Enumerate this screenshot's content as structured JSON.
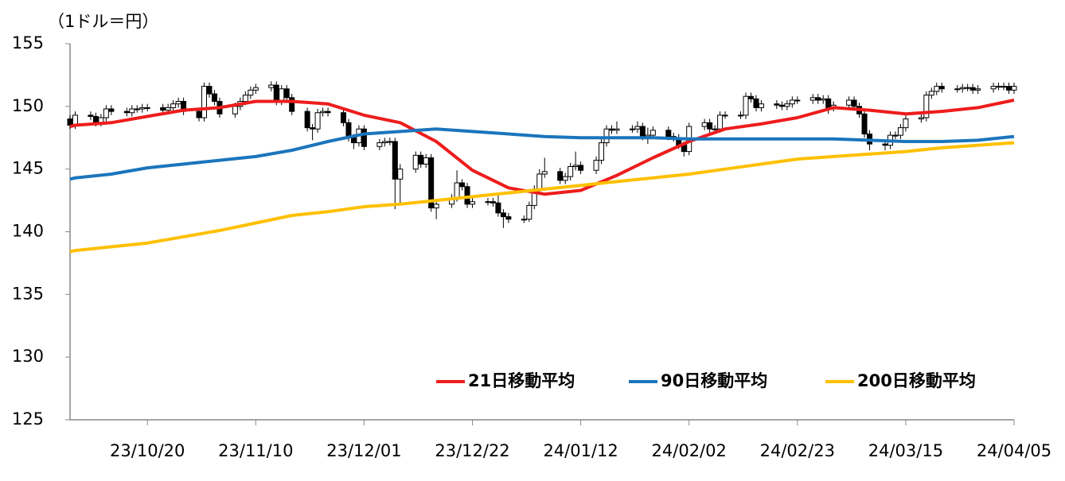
{
  "chart_data": {
    "type": "candlestick",
    "y_label": "（1ドル＝円）",
    "x": [
      "23/10/05",
      "23/10/06",
      "23/10/09",
      "23/10/10",
      "23/10/11",
      "23/10/12",
      "23/10/13",
      "23/10/16",
      "23/10/17",
      "23/10/18",
      "23/10/19",
      "23/10/20",
      "23/10/23",
      "23/10/24",
      "23/10/25",
      "23/10/26",
      "23/10/27",
      "23/10/30",
      "23/10/31",
      "23/11/01",
      "23/11/02",
      "23/11/03",
      "23/11/06",
      "23/11/07",
      "23/11/08",
      "23/11/09",
      "23/11/10",
      "23/11/13",
      "23/11/14",
      "23/11/15",
      "23/11/16",
      "23/11/17",
      "23/11/20",
      "23/11/21",
      "23/11/22",
      "23/11/23",
      "23/11/24",
      "23/11/27",
      "23/11/28",
      "23/11/29",
      "23/11/30",
      "23/12/01",
      "23/12/04",
      "23/12/05",
      "23/12/06",
      "23/12/07",
      "23/12/08",
      "23/12/11",
      "23/12/12",
      "23/12/13",
      "23/12/14",
      "23/12/15",
      "23/12/18",
      "23/12/19",
      "23/12/20",
      "23/12/21",
      "23/12/22",
      "23/12/25",
      "23/12/26",
      "23/12/27",
      "23/12/28",
      "23/12/29",
      "24/01/01",
      "24/01/02",
      "24/01/03",
      "24/01/04",
      "24/01/05",
      "24/01/08",
      "24/01/09",
      "24/01/10",
      "24/01/11",
      "24/01/12",
      "24/01/15",
      "24/01/16",
      "24/01/17",
      "24/01/18",
      "24/01/19",
      "24/01/22",
      "24/01/23",
      "24/01/24",
      "24/01/25",
      "24/01/26",
      "24/01/29",
      "24/01/30",
      "24/01/31",
      "24/02/01",
      "24/02/02",
      "24/02/05",
      "24/02/06",
      "24/02/07",
      "24/02/08",
      "24/02/09",
      "24/02/12",
      "24/02/13",
      "24/02/14",
      "24/02/15",
      "24/02/16",
      "24/02/19",
      "24/02/20",
      "24/02/21",
      "24/02/22",
      "24/02/23",
      "24/02/26",
      "24/02/27",
      "24/02/28",
      "24/02/29",
      "24/03/01",
      "24/03/04",
      "24/03/05",
      "24/03/06",
      "24/03/07",
      "24/03/08",
      "24/03/11",
      "24/03/12",
      "24/03/13",
      "24/03/14",
      "24/03/15",
      "24/03/18",
      "24/03/19",
      "24/03/20",
      "24/03/21",
      "24/03/22",
      "24/03/25",
      "24/03/26",
      "24/03/27",
      "24/03/28",
      "24/03/29",
      "24/04/01",
      "24/04/02",
      "24/04/03",
      "24/04/04",
      "24/04/05"
    ],
    "open": [
      149.0,
      148.5,
      149.3,
      149.2,
      148.7,
      149.1,
      149.8,
      149.6,
      149.5,
      149.8,
      149.8,
      149.9,
      149.9,
      149.7,
      149.9,
      150.2,
      150.4,
      149.6,
      149.1,
      151.6,
      151.0,
      150.4,
      149.4,
      150.0,
      150.4,
      150.9,
      151.3,
      151.5,
      151.7,
      150.4,
      151.4,
      150.7,
      149.6,
      148.3,
      148.2,
      149.5,
      149.6,
      149.5,
      148.7,
      147.5,
      147.1,
      148.2,
      146.8,
      147.1,
      147.2,
      147.2,
      144.2,
      145.0,
      146.1,
      145.4,
      145.9,
      141.9,
      142.2,
      142.7,
      143.9,
      143.6,
      142.2,
      142.4,
      142.4,
      142.3,
      141.5,
      141.2,
      141.0,
      141.0,
      142.1,
      143.4,
      144.6,
      144.8,
      144.1,
      144.4,
      145.2,
      145.3,
      144.9,
      145.7,
      147.1,
      148.2,
      148.1,
      148.2,
      148.2,
      148.4,
      147.6,
      147.7,
      148.1,
      147.6,
      147.5,
      146.9,
      146.4,
      148.4,
      148.7,
      148.2,
      148.2,
      149.3,
      149.3,
      149.3,
      150.8,
      150.6,
      149.9,
      150.2,
      150.1,
      150.0,
      150.2,
      150.5,
      150.5,
      150.7,
      150.5,
      150.6,
      149.9,
      150.1,
      150.5,
      150.0,
      149.4,
      147.8,
      147.0,
      146.9,
      147.7,
      147.7,
      148.3,
      149.0,
      149.1,
      150.9,
      151.2,
      151.6,
      151.4,
      151.4,
      151.5,
      151.5,
      151.3,
      151.4,
      151.6,
      151.6,
      151.6,
      151.3
    ],
    "high": [
      149.3,
      149.6,
      149.6,
      149.5,
      149.4,
      150.1,
      150.1,
      149.9,
      150.1,
      150.1,
      150.2,
      150.2,
      150.2,
      150.2,
      150.5,
      150.7,
      150.7,
      149.9,
      151.9,
      151.9,
      151.3,
      150.7,
      150.3,
      150.7,
      151.2,
      151.6,
      151.8,
      152.0,
      152.0,
      151.7,
      151.7,
      151.0,
      149.9,
      148.6,
      149.8,
      149.9,
      149.9,
      149.8,
      149.0,
      147.8,
      148.5,
      148.5,
      147.4,
      147.5,
      147.5,
      147.5,
      145.4,
      146.4,
      146.4,
      146.2,
      146.2,
      142.5,
      143.0,
      144.9,
      144.2,
      143.9,
      142.7,
      142.7,
      142.7,
      142.9,
      141.8,
      141.5,
      141.3,
      142.4,
      143.7,
      145.0,
      145.9,
      145.1,
      144.7,
      145.5,
      146.4,
      145.6,
      146.0,
      147.4,
      148.5,
      148.5,
      148.8,
      148.5,
      148.8,
      148.7,
      148.3,
      148.4,
      148.4,
      147.9,
      147.8,
      147.2,
      148.7,
      149.0,
      149.0,
      148.5,
      149.6,
      149.6,
      149.6,
      151.1,
      151.1,
      150.9,
      150.5,
      150.5,
      150.4,
      150.5,
      150.8,
      150.8,
      151.0,
      151.0,
      150.9,
      150.9,
      150.4,
      150.8,
      150.8,
      150.3,
      149.7,
      148.1,
      147.3,
      148.0,
      148.0,
      148.6,
      149.3,
      149.4,
      151.2,
      151.5,
      151.9,
      151.9,
      151.7,
      151.8,
      151.8,
      151.8,
      151.7,
      151.9,
      151.9,
      151.9,
      151.9,
      151.9
    ],
    "low": [
      148.2,
      148.2,
      148.9,
      148.4,
      148.4,
      148.8,
      149.3,
      149.2,
      149.2,
      149.5,
      149.5,
      149.6,
      149.4,
      149.4,
      149.6,
      149.9,
      149.3,
      148.8,
      148.8,
      150.7,
      150.1,
      149.1,
      149.1,
      149.7,
      150.1,
      150.6,
      151.0,
      151.2,
      150.1,
      150.1,
      150.4,
      149.3,
      148.0,
      147.3,
      147.9,
      149.2,
      149.2,
      148.4,
      147.2,
      146.6,
      146.8,
      146.5,
      146.5,
      146.8,
      146.9,
      141.8,
      142.2,
      144.7,
      145.1,
      145.1,
      141.6,
      141.0,
      141.9,
      142.4,
      143.3,
      141.9,
      141.9,
      142.1,
      142.0,
      141.2,
      140.3,
      140.7,
      140.7,
      140.8,
      141.8,
      143.1,
      144.3,
      143.8,
      143.8,
      144.1,
      144.9,
      144.6,
      144.6,
      145.4,
      146.8,
      147.8,
      147.8,
      147.9,
      147.9,
      147.3,
      147.0,
      147.4,
      147.3,
      147.2,
      146.6,
      146.0,
      146.1,
      148.1,
      147.9,
      147.9,
      147.9,
      149.0,
      149.0,
      149.0,
      150.3,
      149.6,
      149.6,
      149.8,
      149.7,
      149.7,
      149.9,
      150.2,
      150.2,
      150.2,
      150.2,
      149.4,
      149.6,
      149.8,
      149.7,
      149.1,
      147.5,
      146.5,
      146.5,
      146.6,
      147.4,
      147.4,
      148.0,
      148.7,
      148.8,
      150.6,
      150.9,
      151.1,
      151.1,
      151.1,
      151.2,
      151.0,
      151.0,
      151.1,
      151.3,
      151.3,
      151.0,
      151.0
    ],
    "close": [
      148.5,
      149.3,
      149.2,
      148.7,
      149.1,
      149.8,
      149.6,
      149.5,
      149.8,
      149.8,
      149.9,
      149.9,
      149.7,
      149.9,
      150.2,
      150.4,
      149.6,
      149.1,
      151.6,
      151.0,
      150.4,
      149.4,
      150.0,
      150.4,
      150.9,
      151.3,
      151.5,
      151.7,
      150.4,
      151.4,
      150.7,
      149.6,
      148.3,
      148.2,
      149.5,
      149.6,
      149.5,
      148.7,
      147.5,
      147.1,
      148.2,
      146.8,
      147.1,
      147.2,
      147.2,
      144.2,
      145.0,
      146.1,
      145.4,
      145.9,
      141.9,
      142.2,
      142.7,
      143.9,
      143.6,
      142.2,
      142.4,
      142.4,
      142.3,
      141.5,
      141.2,
      141.0,
      141.0,
      142.1,
      143.4,
      144.6,
      144.8,
      144.1,
      144.4,
      145.2,
      145.3,
      144.9,
      145.7,
      147.1,
      148.2,
      148.1,
      148.2,
      148.2,
      148.4,
      147.6,
      147.7,
      148.1,
      147.6,
      147.5,
      146.9,
      146.4,
      148.4,
      148.7,
      148.2,
      148.2,
      149.3,
      149.3,
      149.3,
      150.8,
      150.6,
      149.9,
      150.2,
      150.1,
      150.0,
      150.2,
      150.5,
      150.5,
      150.7,
      150.5,
      150.6,
      149.9,
      150.1,
      150.5,
      150.0,
      149.4,
      147.8,
      147.0,
      146.9,
      147.7,
      147.7,
      148.3,
      149.0,
      149.1,
      150.9,
      151.2,
      151.6,
      151.4,
      151.4,
      151.5,
      151.5,
      151.3,
      151.4,
      151.6,
      151.6,
      151.6,
      151.3,
      151.6
    ],
    "up_color": "#ffffff",
    "down_color": "#000000",
    "series": [
      {
        "name": "21日移動平均",
        "color": "#ee1c1c",
        "x": [
          "23/10/05",
          "23/10/06",
          "23/10/13",
          "23/10/20",
          "23/10/27",
          "23/11/03",
          "23/11/10",
          "23/11/17",
          "23/11/24",
          "23/12/01",
          "23/12/08",
          "23/12/15",
          "23/12/22",
          "23/12/29",
          "24/01/05",
          "24/01/12",
          "24/01/19",
          "24/01/26",
          "24/02/02",
          "24/02/09",
          "24/02/16",
          "24/02/23",
          "24/03/01",
          "24/03/08",
          "24/03/15",
          "24/03/22",
          "24/03/29",
          "24/04/05"
        ],
        "values": [
          148.4,
          148.5,
          148.7,
          149.2,
          149.7,
          149.9,
          150.4,
          150.4,
          150.2,
          149.3,
          148.7,
          147.2,
          144.9,
          143.5,
          143.0,
          143.3,
          144.5,
          145.9,
          147.2,
          148.2,
          148.6,
          149.1,
          149.9,
          149.7,
          149.4,
          149.6,
          149.9,
          150.5
        ]
      },
      {
        "name": "90日移動平均",
        "color": "#1b75bc",
        "x": [
          "23/10/05",
          "23/10/06",
          "23/10/13",
          "23/10/20",
          "23/10/27",
          "23/11/03",
          "23/11/10",
          "23/11/17",
          "23/11/24",
          "23/12/01",
          "23/12/08",
          "23/12/15",
          "23/12/22",
          "23/12/29",
          "24/01/05",
          "24/01/12",
          "24/01/19",
          "24/01/26",
          "24/02/02",
          "24/02/09",
          "24/02/16",
          "24/02/23",
          "24/03/01",
          "24/03/08",
          "24/03/15",
          "24/03/22",
          "24/03/29",
          "24/04/05"
        ],
        "values": [
          144.2,
          144.3,
          144.6,
          145.1,
          145.4,
          145.7,
          146.0,
          146.5,
          147.2,
          147.8,
          148.0,
          148.2,
          148.0,
          147.8,
          147.6,
          147.5,
          147.5,
          147.5,
          147.4,
          147.4,
          147.4,
          147.4,
          147.4,
          147.3,
          147.2,
          147.2,
          147.3,
          147.6
        ]
      },
      {
        "name": "200日移動平均",
        "color": "#ffc000",
        "x": [
          "23/10/05",
          "23/10/06",
          "23/10/13",
          "23/10/20",
          "23/10/27",
          "23/11/03",
          "23/11/10",
          "23/11/17",
          "23/11/24",
          "23/12/01",
          "23/12/08",
          "23/12/15",
          "23/12/22",
          "23/12/29",
          "24/01/05",
          "24/01/12",
          "24/01/19",
          "24/01/26",
          "24/02/02",
          "24/02/09",
          "24/02/16",
          "24/02/23",
          "24/03/01",
          "24/03/08",
          "24/03/15",
          "24/03/22",
          "24/03/29",
          "24/04/05"
        ],
        "values": [
          138.4,
          138.5,
          138.8,
          139.1,
          139.6,
          140.1,
          140.7,
          141.3,
          141.6,
          142.0,
          142.2,
          142.5,
          142.8,
          143.1,
          143.4,
          143.7,
          144.0,
          144.3,
          144.6,
          145.0,
          145.4,
          145.8,
          146.0,
          146.2,
          146.4,
          146.7,
          146.9,
          147.1
        ]
      }
    ],
    "xlim": [
      "23/10/05",
      "24/04/05"
    ],
    "xticks": [
      "23/10/20",
      "23/11/10",
      "23/12/01",
      "23/12/22",
      "24/01/12",
      "24/02/02",
      "24/02/23",
      "24/03/15",
      "24/04/05"
    ],
    "ylim": [
      125,
      155
    ],
    "yticks": [
      125,
      130,
      135,
      140,
      145,
      150,
      155
    ],
    "grid": false,
    "legend": "bottom-right"
  }
}
